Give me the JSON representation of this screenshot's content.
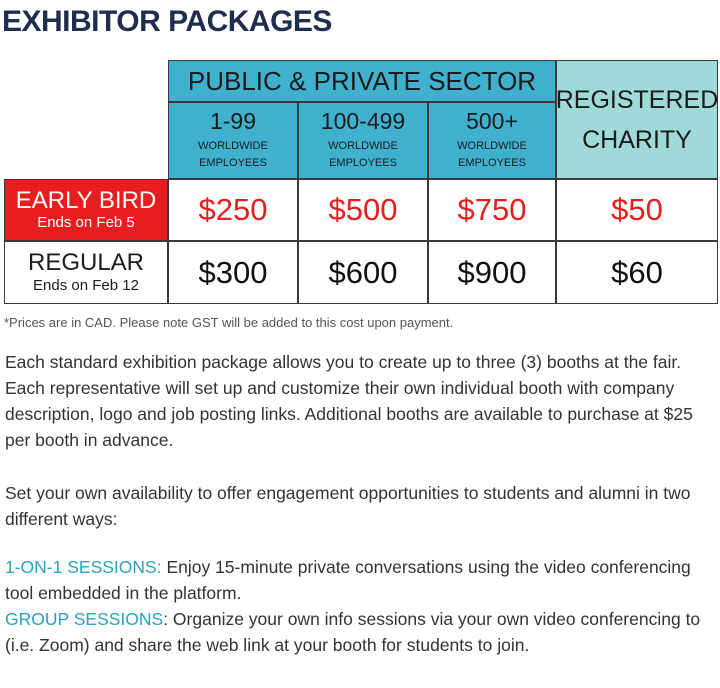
{
  "title": "EXHIBITOR PACKAGES",
  "table": {
    "public_header": "PUBLIC & PRIVATE SECTOR",
    "charity_header_line1": "REGISTERED",
    "charity_header_line2": "CHARITY",
    "columns": [
      {
        "size": "1-99",
        "sub1": "WORLDWIDE",
        "sub2": "EMPLOYEES"
      },
      {
        "size": "100-499",
        "sub1": "WORLDWIDE",
        "sub2": "EMPLOYEES"
      },
      {
        "size": "500+",
        "sub1": "WORLDWIDE",
        "sub2": "EMPLOYEES"
      }
    ],
    "early_bird": {
      "label": "EARLY BIRD",
      "sub": "Ends on Feb 5",
      "prices": [
        "$250",
        "$500",
        "$750",
        "$50"
      ]
    },
    "regular": {
      "label": "REGULAR",
      "sub": "Ends on Feb 12",
      "prices": [
        "$300",
        "$600",
        "$900",
        "$60"
      ]
    }
  },
  "note": "*Prices are in CAD. Please note GST will be added to this cost upon payment.",
  "paragraphs": {
    "p1": "Each standard exhibition package allows you to create up to three (3) booths at the fair. Each representative will set up and customize their own individual booth with company description, logo and job posting links. Additional booths are available to purchase at $25 per booth in advance.",
    "p2": "Set your own availability to offer engagement opportunities to students and alumni in two different ways:",
    "s1_label": "1-ON-1 SESSIONS:",
    "s1_text": " Enjoy 15-minute private conversations using the video conferencing tool embedded in the platform.",
    "s2_label": "GROUP SESSIONS",
    "s2_text": ": Organize your own info sessions via your own video conferencing to (i.e. Zoom) and share the web link at your booth for students to join."
  },
  "colors": {
    "header_cyan": "#3fb1cf",
    "header_mint": "#9fdad9",
    "early_bird_red": "#e81e1e",
    "title_navy": "#1f2d4f",
    "highlight_teal": "#2aa3c3"
  }
}
